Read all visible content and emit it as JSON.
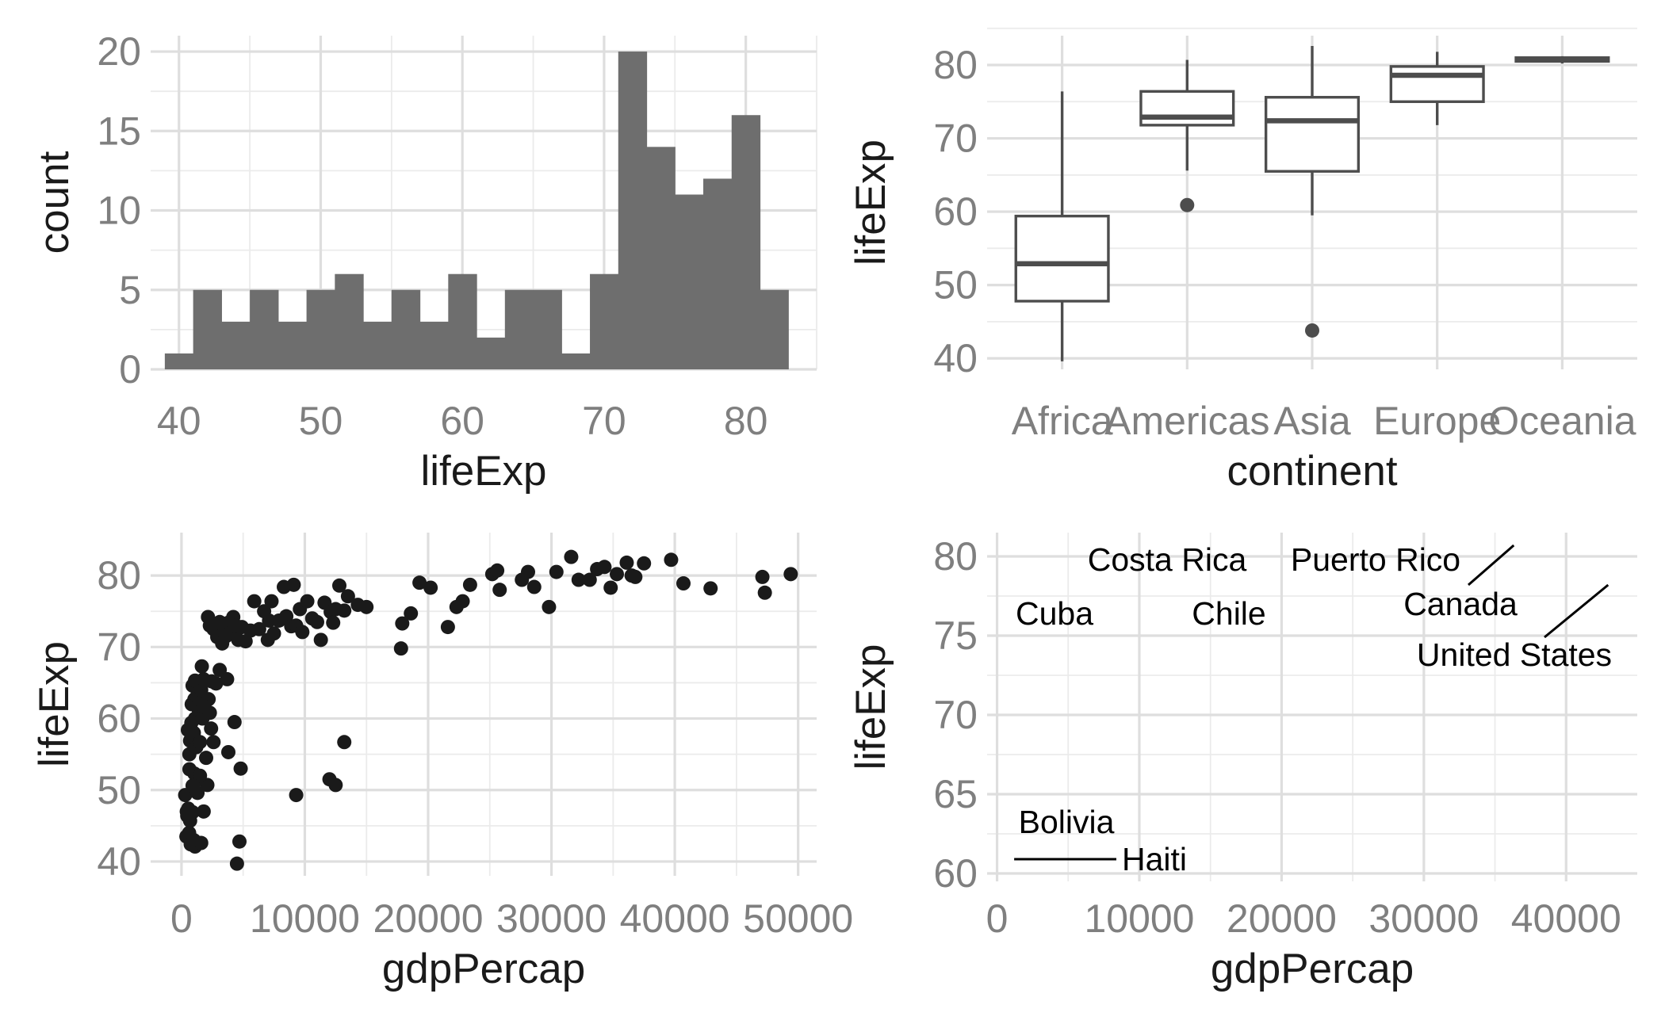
{
  "chart_data": [
    {
      "type": "bar",
      "subtype": "histogram",
      "xlabel": "lifeExp",
      "ylabel": "count",
      "xlim": [
        38,
        85
      ],
      "ylim": [
        0,
        21
      ],
      "x_ticks": [
        40,
        50,
        60,
        70,
        80
      ],
      "y_ticks": [
        0,
        5,
        10,
        15,
        20
      ],
      "bin_start": 39,
      "bin_width": 2,
      "values": [
        1,
        5,
        3,
        5,
        3,
        5,
        6,
        3,
        5,
        3,
        6,
        2,
        5,
        5,
        1,
        6,
        20,
        14,
        11,
        12,
        16,
        5
      ],
      "bar_color": "#6e6e6e",
      "grid": true,
      "legend": "none"
    },
    {
      "type": "box",
      "xlabel": "continent",
      "ylabel": "lifeExp",
      "ylim": [
        38.5,
        84
      ],
      "y_ticks": [
        40,
        50,
        60,
        70,
        80
      ],
      "categories": [
        "Africa",
        "Americas",
        "Asia",
        "Europe",
        "Oceania"
      ],
      "boxes": [
        {
          "whisker_low": 39.6,
          "q1": 47.8,
          "median": 52.9,
          "q3": 59.4,
          "whisker_high": 76.4,
          "outliers": []
        },
        {
          "whisker_low": 65.6,
          "q1": 71.8,
          "median": 72.9,
          "q3": 76.4,
          "whisker_high": 80.7,
          "outliers": [
            60.9
          ]
        },
        {
          "whisker_low": 59.5,
          "q1": 65.5,
          "median": 72.4,
          "q3": 75.6,
          "whisker_high": 82.6,
          "outliers": [
            43.8
          ]
        },
        {
          "whisker_low": 71.8,
          "q1": 75.0,
          "median": 78.6,
          "q3": 79.8,
          "whisker_high": 81.8,
          "outliers": []
        },
        {
          "whisker_low": 80.2,
          "q1": 80.5,
          "median": 80.7,
          "q3": 81.0,
          "whisker_high": 81.2,
          "outliers": []
        }
      ],
      "line_color": "#4d4d4d",
      "grid": true,
      "legend": "none"
    },
    {
      "type": "scatter",
      "xlabel": "gdpPercap",
      "ylabel": "lifeExp",
      "xlim": [
        -2500,
        51500
      ],
      "ylim": [
        38,
        86
      ],
      "x_ticks": [
        0,
        10000,
        20000,
        30000,
        40000,
        50000
      ],
      "y_ticks": [
        40,
        50,
        60,
        70,
        80
      ],
      "point_color": "#1a1a1a",
      "points": [
        [
          470,
          46.4
        ],
        [
          620,
          44.0
        ],
        [
          400,
          43.5
        ],
        [
          750,
          42.4
        ],
        [
          1100,
          42.1
        ],
        [
          1600,
          42.6
        ],
        [
          4500,
          39.7
        ],
        [
          4700,
          42.8
        ],
        [
          300,
          49.3
        ],
        [
          550,
          47.4
        ],
        [
          700,
          45.7
        ],
        [
          900,
          46.9
        ],
        [
          430,
          47.0
        ],
        [
          1300,
          49.6
        ],
        [
          1800,
          47.0
        ],
        [
          2100,
          50.7
        ],
        [
          650,
          52.9
        ],
        [
          1050,
          52.3
        ],
        [
          1400,
          51.5
        ],
        [
          2000,
          54.5
        ],
        [
          2600,
          56.7
        ],
        [
          3800,
          55.3
        ],
        [
          4800,
          53.0
        ],
        [
          640,
          55.0
        ],
        [
          700,
          56.9
        ],
        [
          860,
          57.3
        ],
        [
          1000,
          58.0
        ],
        [
          1200,
          56.0
        ],
        [
          1500,
          56.7
        ],
        [
          520,
          58.4
        ],
        [
          800,
          59.4
        ],
        [
          1100,
          60.0
        ],
        [
          1400,
          61.2
        ],
        [
          1700,
          60.0
        ],
        [
          2400,
          58.6
        ],
        [
          4300,
          59.5
        ],
        [
          830,
          62.0
        ],
        [
          1050,
          62.7
        ],
        [
          1250,
          63.1
        ],
        [
          1600,
          64.0
        ],
        [
          2200,
          62.7
        ],
        [
          900,
          64.6
        ],
        [
          1100,
          65.3
        ],
        [
          1450,
          65.0
        ],
        [
          1800,
          65.5
        ],
        [
          2450,
          65.2
        ],
        [
          2800,
          64.9
        ],
        [
          3100,
          66.8
        ],
        [
          3700,
          65.5
        ],
        [
          1650,
          67.3
        ],
        [
          2150,
          74.2
        ],
        [
          2300,
          73.0
        ],
        [
          2600,
          72.5
        ],
        [
          2900,
          71.4
        ],
        [
          3100,
          73.5
        ],
        [
          3300,
          70.5
        ],
        [
          3500,
          72.4
        ],
        [
          3600,
          71.5
        ],
        [
          3800,
          73.4
        ],
        [
          4000,
          72.0
        ],
        [
          4200,
          74.2
        ],
        [
          4400,
          73.0
        ],
        [
          4600,
          71.0
        ],
        [
          4900,
          72.8
        ],
        [
          5200,
          70.8
        ],
        [
          5600,
          72.3
        ],
        [
          5900,
          76.4
        ],
        [
          6300,
          72.5
        ],
        [
          6700,
          75.0
        ],
        [
          7000,
          71.0
        ],
        [
          7100,
          73.7
        ],
        [
          7300,
          76.4
        ],
        [
          7500,
          71.9
        ],
        [
          7900,
          73.7
        ],
        [
          8300,
          78.4
        ],
        [
          8500,
          74.3
        ],
        [
          8900,
          72.9
        ],
        [
          9100,
          78.7
        ],
        [
          9300,
          73.0
        ],
        [
          9600,
          75.3
        ],
        [
          9800,
          72.1
        ],
        [
          10200,
          76.4
        ],
        [
          10600,
          74.0
        ],
        [
          11000,
          73.5
        ],
        [
          11300,
          71.0
        ],
        [
          11600,
          76.2
        ],
        [
          12100,
          74.9
        ],
        [
          12300,
          73.4
        ],
        [
          12500,
          75.3
        ],
        [
          12800,
          78.6
        ],
        [
          13200,
          75.1
        ],
        [
          14300,
          75.9
        ],
        [
          15000,
          75.6
        ],
        [
          17800,
          69.8
        ],
        [
          17900,
          73.3
        ],
        [
          18600,
          74.7
        ],
        [
          19300,
          79.0
        ],
        [
          20200,
          78.3
        ],
        [
          21600,
          72.8
        ],
        [
          22300,
          75.6
        ],
        [
          22800,
          76.4
        ],
        [
          23400,
          78.7
        ],
        [
          25200,
          80.2
        ],
        [
          25600,
          80.7
        ],
        [
          25800,
          78.0
        ],
        [
          27600,
          79.4
        ],
        [
          28100,
          80.5
        ],
        [
          28600,
          78.4
        ],
        [
          29800,
          75.6
        ],
        [
          30400,
          80.5
        ],
        [
          31600,
          82.6
        ],
        [
          32200,
          79.4
        ],
        [
          33100,
          79.4
        ],
        [
          33700,
          80.9
        ],
        [
          34300,
          81.2
        ],
        [
          34800,
          78.3
        ],
        [
          35300,
          80.2
        ],
        [
          36100,
          81.8
        ],
        [
          36500,
          80.0
        ],
        [
          36800,
          79.8
        ],
        [
          37500,
          81.7
        ],
        [
          39700,
          82.2
        ],
        [
          40700,
          78.9
        ],
        [
          42900,
          78.2
        ],
        [
          47100,
          79.8
        ],
        [
          47300,
          77.6
        ],
        [
          49400,
          80.2
        ],
        [
          9300,
          49.3
        ],
        [
          12000,
          51.5
        ],
        [
          12500,
          50.7
        ],
        [
          13200,
          56.7
        ],
        [
          13500,
          77.1
        ],
        [
          1500,
          52.0
        ],
        [
          900,
          50.6
        ],
        [
          1800,
          61.7
        ],
        [
          2300,
          60.8
        ],
        [
          1000,
          43.0
        ]
      ],
      "grid": true,
      "legend": "none"
    },
    {
      "type": "scatter",
      "subtype": "text labels",
      "xlabel": "gdpPercap",
      "ylabel": "lifeExp",
      "xlim": [
        -700,
        45000
      ],
      "ylim": [
        59.5,
        81.5
      ],
      "x_ticks": [
        0,
        10000,
        20000,
        30000,
        40000
      ],
      "y_ticks": [
        60,
        65,
        70,
        75,
        80
      ],
      "labels": [
        {
          "text": "Costa Rica",
          "x": 9645,
          "y": 78.8
        },
        {
          "text": "Puerto Rico",
          "x": 19328,
          "y": 78.7
        },
        {
          "text": "Canada",
          "x": 36319,
          "y": 80.7
        },
        {
          "text": "Cuba",
          "x": 8948,
          "y": 78.3
        },
        {
          "text": "Chile",
          "x": 13172,
          "y": 78.6
        },
        {
          "text": "United States",
          "x": 42952,
          "y": 78.2
        },
        {
          "text": "Bolivia",
          "x": 3822,
          "y": 65.6
        },
        {
          "text": "Haiti",
          "x": 1202,
          "y": 60.9
        }
      ],
      "grid": true,
      "legend": "none"
    }
  ]
}
